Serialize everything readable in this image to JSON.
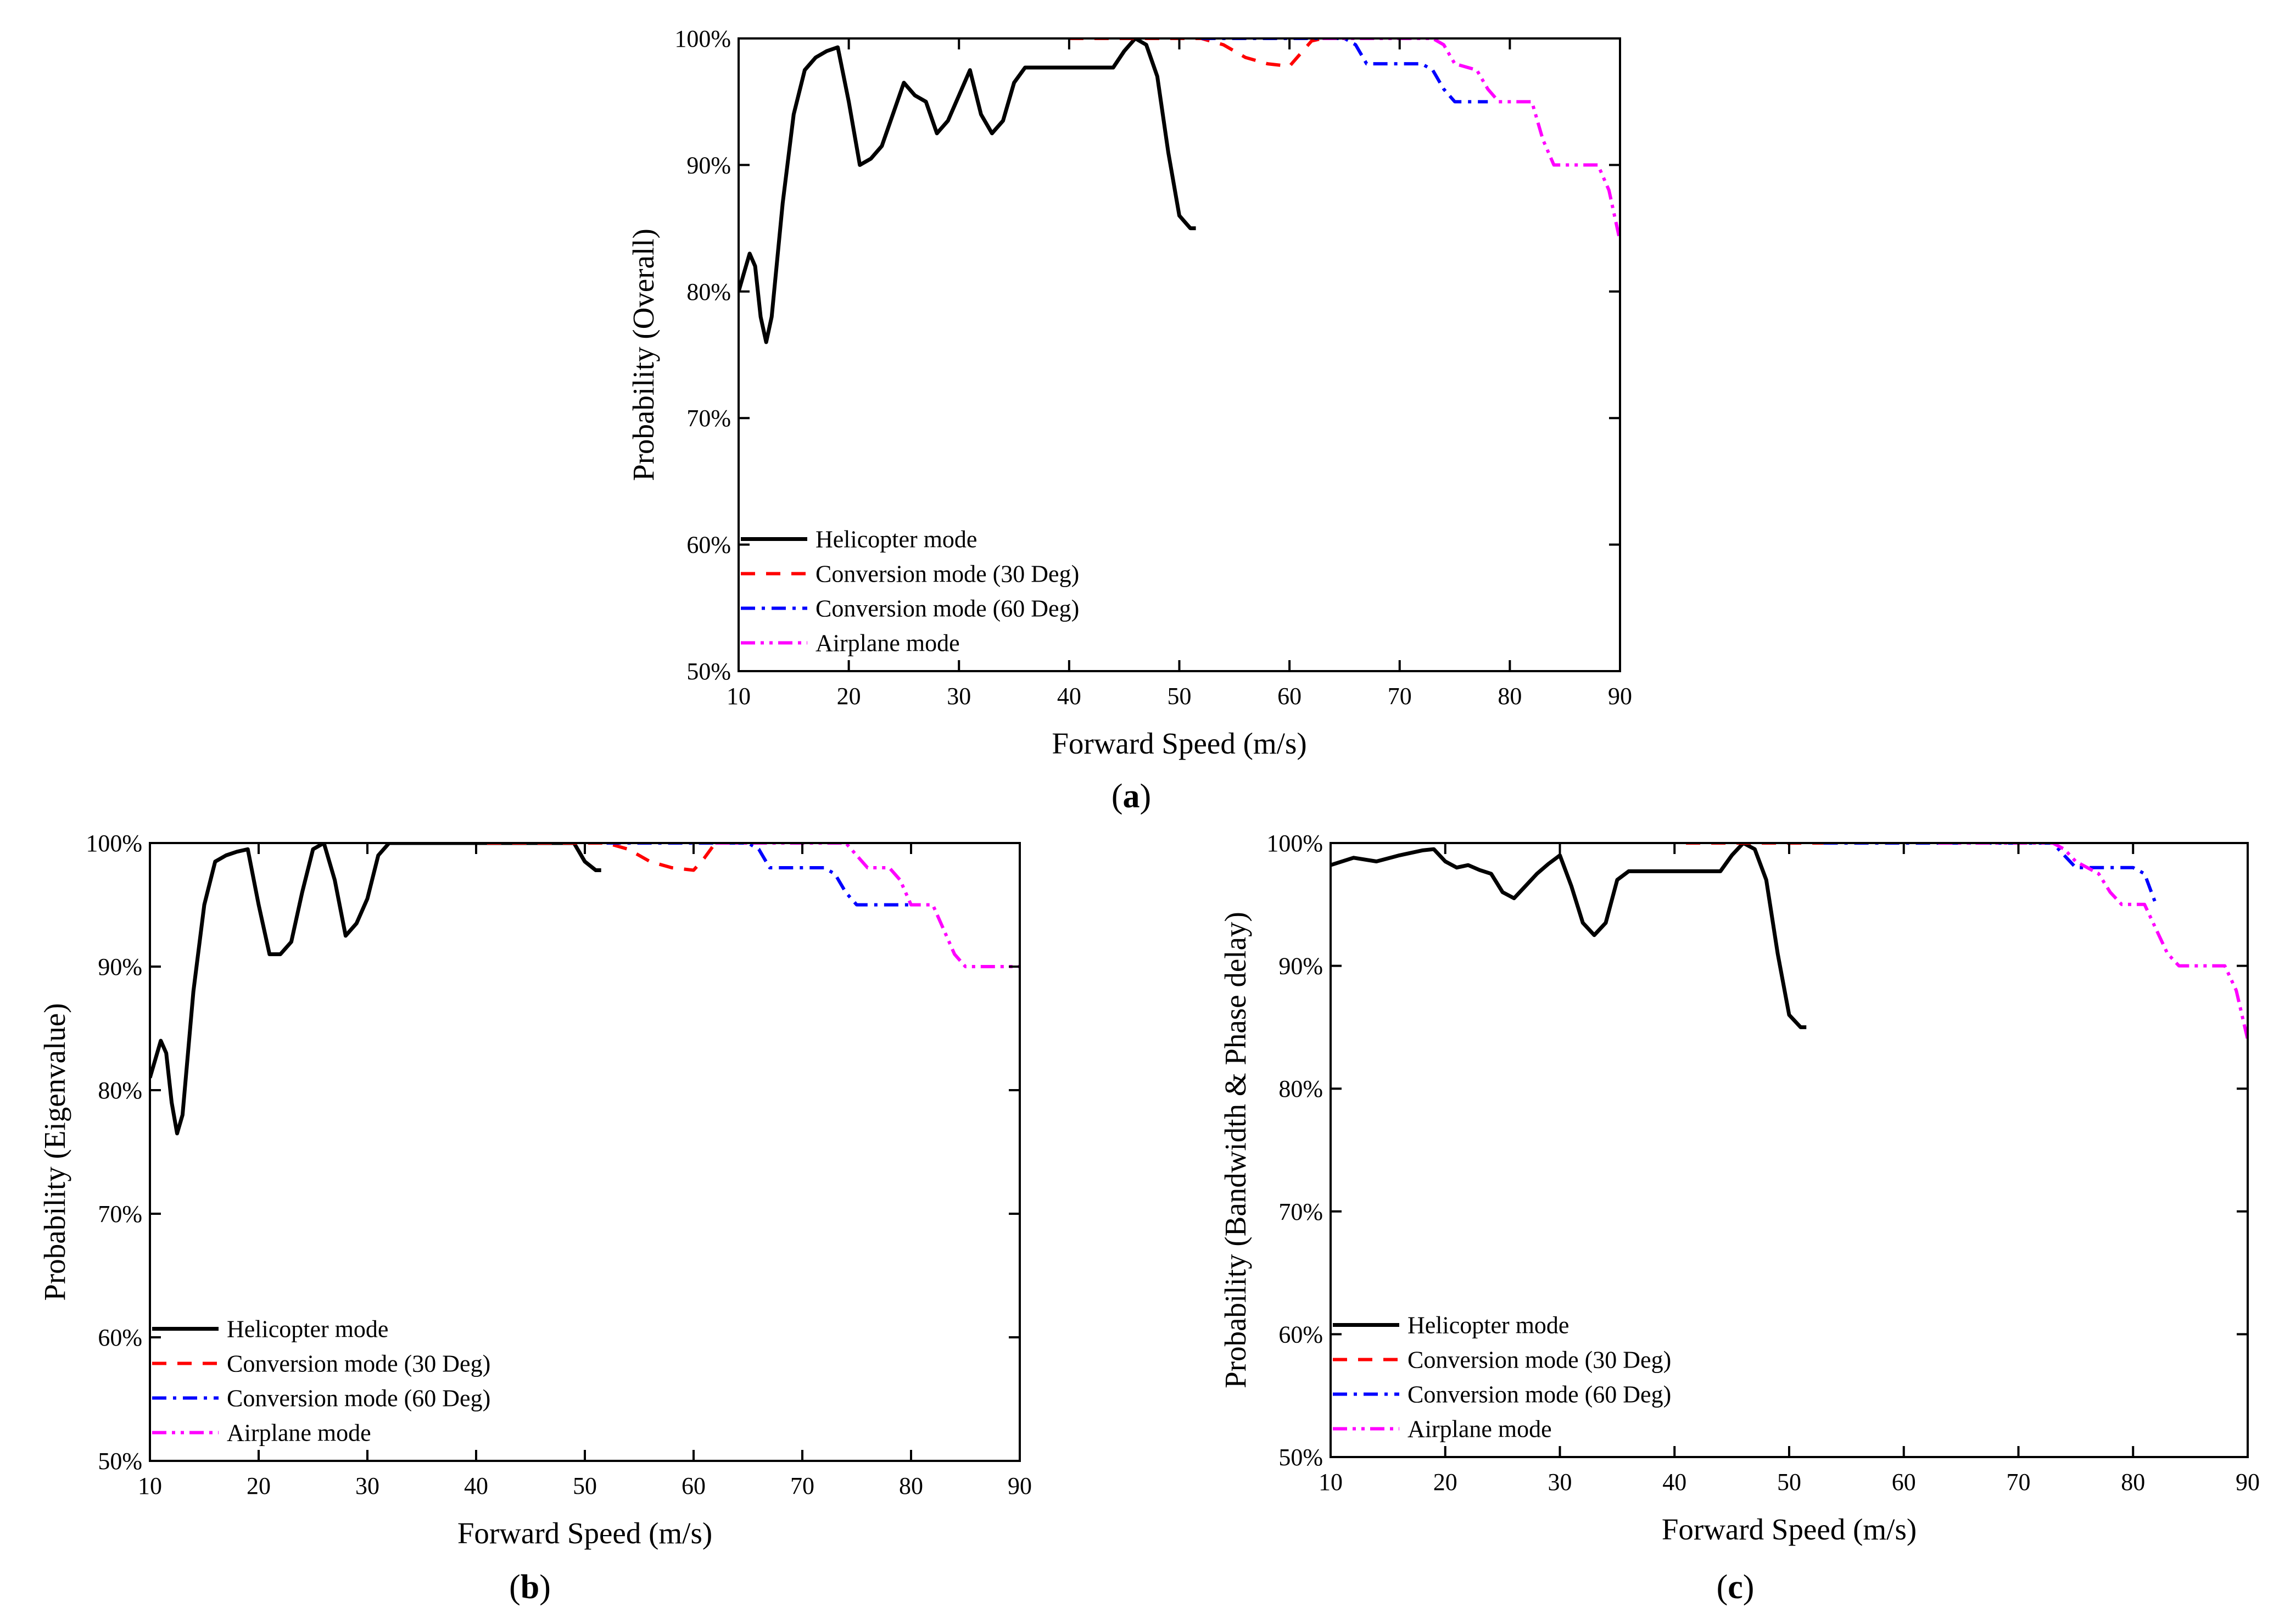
{
  "series_styles": [
    {
      "key": "helicopter",
      "color": "#000000",
      "dash": "none",
      "width": 7
    },
    {
      "key": "conv30",
      "color": "#ff0000",
      "dash": "26,20",
      "width": 6
    },
    {
      "key": "conv60",
      "color": "#0000ff",
      "dash": "26,12,6,12",
      "width": 6
    },
    {
      "key": "airplane",
      "color": "#ff00ff",
      "dash": "26,10,6,10,6,10",
      "width": 6
    }
  ],
  "chart_data": [
    {
      "type": "line",
      "panel_label": "a",
      "xlabel": "Forward Speed (m/s)",
      "ylabel": "Probability (Overall)",
      "xlim": [
        10,
        90
      ],
      "ylim": [
        50,
        100
      ],
      "xticks": [
        10,
        20,
        30,
        40,
        50,
        60,
        70,
        80,
        90
      ],
      "yticks": [
        50,
        60,
        70,
        80,
        90,
        100
      ],
      "ytick_labels": [
        "50%",
        "60%",
        "70%",
        "80%",
        "90%",
        "100%"
      ],
      "legend": [
        "Helicopter mode",
        "Conversion mode (30 Deg)",
        "Conversion mode (60 Deg)",
        "Airplane mode"
      ],
      "legend_position": "bottom-left",
      "series": [
        {
          "name": "Helicopter mode",
          "style": "helicopter",
          "points": [
            [
              10,
              80
            ],
            [
              10.5,
              81.5
            ],
            [
              11,
              83
            ],
            [
              11.5,
              82
            ],
            [
              12,
              78
            ],
            [
              12.5,
              76
            ],
            [
              13,
              78
            ],
            [
              14,
              87
            ],
            [
              15,
              94
            ],
            [
              16,
              97.5
            ],
            [
              17,
              98.5
            ],
            [
              18,
              99
            ],
            [
              19,
              99.3
            ],
            [
              20,
              95
            ],
            [
              21,
              90
            ],
            [
              22,
              90.5
            ],
            [
              23,
              91.5
            ],
            [
              24,
              94
            ],
            [
              25,
              96.5
            ],
            [
              26,
              95.5
            ],
            [
              27,
              95
            ],
            [
              28,
              92.5
            ],
            [
              29,
              93.5
            ],
            [
              30,
              95.5
            ],
            [
              31,
              97.5
            ],
            [
              32,
              94
            ],
            [
              33,
              92.5
            ],
            [
              34,
              93.5
            ],
            [
              35,
              96.5
            ],
            [
              36,
              97.7
            ],
            [
              40,
              97.7
            ],
            [
              44,
              97.7
            ],
            [
              45,
              99
            ],
            [
              46,
              100
            ],
            [
              47,
              99.5
            ],
            [
              48,
              97
            ],
            [
              49,
              91
            ],
            [
              50,
              86
            ],
            [
              51,
              85
            ],
            [
              51.5,
              85
            ]
          ]
        },
        {
          "name": "Conversion mode (30 Deg)",
          "style": "conv30",
          "points": [
            [
              40,
              100
            ],
            [
              52,
              100
            ],
            [
              54,
              99.5
            ],
            [
              56,
              98.5
            ],
            [
              58,
              98
            ],
            [
              60,
              97.8
            ],
            [
              61,
              98.8
            ],
            [
              62,
              99.8
            ],
            [
              63,
              100
            ],
            [
              64,
              100
            ]
          ]
        },
        {
          "name": "Conversion mode (60 Deg)",
          "style": "conv60",
          "points": [
            [
              52,
              100
            ],
            [
              65,
              100
            ],
            [
              66,
              99.5
            ],
            [
              67,
              98
            ],
            [
              70,
              98
            ],
            [
              72,
              98
            ],
            [
              73,
              97.5
            ],
            [
              74,
              96
            ],
            [
              75,
              95
            ],
            [
              77,
              95
            ],
            [
              78,
              95
            ]
          ]
        },
        {
          "name": "Airplane mode",
          "style": "airplane",
          "points": [
            [
              63,
              100
            ],
            [
              73,
              100
            ],
            [
              74,
              99.5
            ],
            [
              75,
              98
            ],
            [
              77,
              97.5
            ],
            [
              78,
              96
            ],
            [
              79,
              95
            ],
            [
              82,
              95
            ],
            [
              83,
              92
            ],
            [
              84,
              90
            ],
            [
              88,
              90
            ],
            [
              89,
              88
            ],
            [
              90,
              84
            ]
          ]
        }
      ]
    },
    {
      "type": "line",
      "panel_label": "b",
      "xlabel": "Forward Speed (m/s)",
      "ylabel": "Probability (Eigenvalue)",
      "xlim": [
        10,
        90
      ],
      "ylim": [
        50,
        100
      ],
      "xticks": [
        10,
        20,
        30,
        40,
        50,
        60,
        70,
        80,
        90
      ],
      "yticks": [
        50,
        60,
        70,
        80,
        90,
        100
      ],
      "ytick_labels": [
        "50%",
        "60%",
        "70%",
        "80%",
        "90%",
        "100%"
      ],
      "legend": [
        "Helicopter mode",
        "Conversion mode (30 Deg)",
        "Conversion mode (60 Deg)",
        "Airplane mode"
      ],
      "legend_position": "bottom-left",
      "series": [
        {
          "name": "Helicopter mode",
          "style": "helicopter",
          "points": [
            [
              10,
              81
            ],
            [
              10.5,
              82.5
            ],
            [
              11,
              84
            ],
            [
              11.5,
              83
            ],
            [
              12,
              79
            ],
            [
              12.5,
              76.5
            ],
            [
              13,
              78
            ],
            [
              14,
              88
            ],
            [
              15,
              95
            ],
            [
              16,
              98.5
            ],
            [
              17,
              99
            ],
            [
              18,
              99.3
            ],
            [
              19,
              99.5
            ],
            [
              20,
              95
            ],
            [
              21,
              91
            ],
            [
              22,
              91
            ],
            [
              23,
              92
            ],
            [
              24,
              96
            ],
            [
              25,
              99.5
            ],
            [
              26,
              100
            ],
            [
              27,
              97
            ],
            [
              28,
              92.5
            ],
            [
              29,
              93.5
            ],
            [
              30,
              95.5
            ],
            [
              31,
              99
            ],
            [
              32,
              100
            ],
            [
              40,
              100
            ],
            [
              45,
              100
            ],
            [
              49,
              100
            ],
            [
              50,
              98.5
            ],
            [
              51,
              97.8
            ],
            [
              51.5,
              97.8
            ]
          ]
        },
        {
          "name": "Conversion mode (30 Deg)",
          "style": "conv30",
          "points": [
            [
              41,
              100
            ],
            [
              50,
              100
            ],
            [
              52,
              100
            ],
            [
              54,
              99.5
            ],
            [
              56,
              98.5
            ],
            [
              58,
              98
            ],
            [
              60,
              97.8
            ],
            [
              61,
              98.8
            ],
            [
              62,
              100
            ],
            [
              64,
              100
            ]
          ]
        },
        {
          "name": "Conversion mode (60 Deg)",
          "style": "conv60",
          "points": [
            [
              52,
              100
            ],
            [
              65,
              100
            ],
            [
              66,
              99.5
            ],
            [
              67,
              98
            ],
            [
              70,
              98
            ],
            [
              72,
              98
            ],
            [
              73,
              97.5
            ],
            [
              74,
              96
            ],
            [
              75,
              95
            ],
            [
              78,
              95
            ],
            [
              80,
              95
            ]
          ]
        },
        {
          "name": "Airplane mode",
          "style": "airplane",
          "points": [
            [
              62,
              100
            ],
            [
              74,
              100
            ],
            [
              75,
              99
            ],
            [
              76,
              98
            ],
            [
              78,
              98
            ],
            [
              79,
              97
            ],
            [
              80,
              95
            ],
            [
              82,
              95
            ],
            [
              83,
              93
            ],
            [
              84,
              91
            ],
            [
              85,
              90
            ],
            [
              90,
              90
            ]
          ]
        }
      ]
    },
    {
      "type": "line",
      "panel_label": "c",
      "xlabel": "Forward Speed (m/s)",
      "ylabel": "Probability (Bandwidth & Phase delay)",
      "xlim": [
        10,
        90
      ],
      "ylim": [
        50,
        100
      ],
      "xticks": [
        10,
        20,
        30,
        40,
        50,
        60,
        70,
        80,
        90
      ],
      "yticks": [
        50,
        60,
        70,
        80,
        90,
        100
      ],
      "ytick_labels": [
        "50%",
        "60%",
        "70%",
        "80%",
        "90%",
        "100%"
      ],
      "legend": [
        "Helicopter mode",
        "Conversion mode (30 Deg)",
        "Conversion mode (60 Deg)",
        "Airplane mode"
      ],
      "legend_position": "bottom-left",
      "series": [
        {
          "name": "Helicopter mode",
          "style": "helicopter",
          "points": [
            [
              10,
              98.2
            ],
            [
              12,
              98.8
            ],
            [
              14,
              98.5
            ],
            [
              16,
              99
            ],
            [
              18,
              99.4
            ],
            [
              19,
              99.5
            ],
            [
              20,
              98.5
            ],
            [
              21,
              98
            ],
            [
              22,
              98.2
            ],
            [
              23,
              97.8
            ],
            [
              24,
              97.5
            ],
            [
              25,
              96
            ],
            [
              26,
              95.5
            ],
            [
              27,
              96.5
            ],
            [
              28,
              97.5
            ],
            [
              29,
              98.3
            ],
            [
              30,
              99
            ],
            [
              31,
              96.5
            ],
            [
              32,
              93.5
            ],
            [
              33,
              92.5
            ],
            [
              34,
              93.5
            ],
            [
              35,
              97
            ],
            [
              36,
              97.7
            ],
            [
              40,
              97.7
            ],
            [
              44,
              97.7
            ],
            [
              45,
              99
            ],
            [
              46,
              100
            ],
            [
              47,
              99.5
            ],
            [
              48,
              97
            ],
            [
              49,
              91
            ],
            [
              50,
              86
            ],
            [
              51,
              85
            ],
            [
              51.5,
              85
            ]
          ]
        },
        {
          "name": "Conversion mode (30 Deg)",
          "style": "conv30",
          "points": [
            [
              41,
              100
            ],
            [
              53,
              100
            ]
          ]
        },
        {
          "name": "Conversion mode (60 Deg)",
          "style": "conv60",
          "points": [
            [
              53,
              100
            ],
            [
              73,
              100
            ],
            [
              74,
              99
            ],
            [
              75,
              98
            ],
            [
              80,
              98
            ],
            [
              81,
              97.5
            ],
            [
              82,
              95
            ]
          ]
        },
        {
          "name": "Airplane mode",
          "style": "airplane",
          "points": [
            [
              63,
              100
            ],
            [
              73,
              100
            ],
            [
              74,
              99.5
            ],
            [
              75,
              98.5
            ],
            [
              77,
              97.5
            ],
            [
              78,
              96
            ],
            [
              79,
              95
            ],
            [
              81,
              95
            ],
            [
              82,
              93
            ],
            [
              83,
              91
            ],
            [
              84,
              90
            ],
            [
              88,
              90
            ],
            [
              89,
              88
            ],
            [
              90,
              84
            ]
          ]
        }
      ]
    }
  ]
}
